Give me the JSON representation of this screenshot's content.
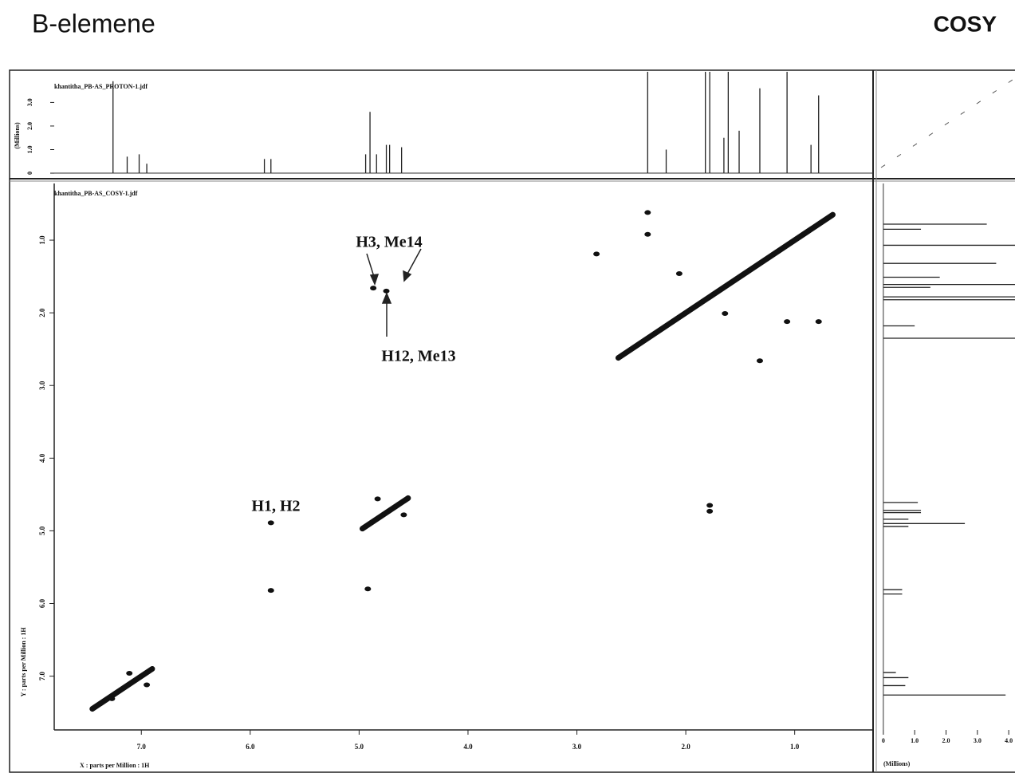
{
  "chart_data": {
    "type": "cosy",
    "title": "B-elemene",
    "subtitle": "COSY",
    "proton_file": "khantitha_PB-AS_PROTON-1.jdf",
    "cosy_file": "khantitha_PB-AS_COSY-1.jdf",
    "x_label": "X : parts per Million : 1H",
    "y_label": "Y : parts per Million : 1H",
    "intensity_label": "(Millions)",
    "xlim": [
      7.8,
      0.28
    ],
    "ylim": [
      0.22,
      7.74
    ],
    "xticks": [
      {
        "value": 7,
        "label": "7.0"
      },
      {
        "value": 6,
        "label": "6.0"
      },
      {
        "value": 5,
        "label": "5.0"
      },
      {
        "value": 4,
        "label": "4.0"
      },
      {
        "value": 3,
        "label": "3.0"
      },
      {
        "value": 2,
        "label": "2.0"
      },
      {
        "value": 1,
        "label": "1.0"
      }
    ],
    "yticks": [
      {
        "value": 1,
        "label": "1.0"
      },
      {
        "value": 2,
        "label": "2.0"
      },
      {
        "value": 3,
        "label": "3.0"
      },
      {
        "value": 4,
        "label": "4.0"
      },
      {
        "value": 5,
        "label": "5.0"
      },
      {
        "value": 6,
        "label": "6.0"
      },
      {
        "value": 7,
        "label": "7.0"
      }
    ],
    "proton": {
      "x": [
        7.26,
        7.13,
        7.02,
        6.95,
        5.87,
        5.81,
        4.94,
        4.9,
        4.84,
        4.75,
        4.72,
        4.61,
        2.35,
        2.18,
        1.82,
        1.78,
        1.65,
        1.61,
        1.51,
        1.32,
        1.07,
        0.85,
        0.78
      ],
      "values": [
        3.9,
        0.7,
        0.8,
        0.4,
        0.6,
        0.6,
        0.8,
        2.6,
        0.8,
        1.2,
        1.2,
        1.1,
        4.3,
        1.0,
        4.3,
        4.3,
        1.5,
        4.3,
        1.8,
        3.6,
        4.3,
        1.2,
        3.3
      ],
      "ylim": [
        -0.1,
        4.3
      ],
      "yticks": [
        0,
        {
          "value": 1,
          "label": "1.0"
        },
        {
          "value": 2,
          "label": "2.0"
        },
        {
          "value": 3,
          "label": "3.0"
        }
      ],
      "side_lim": [
        -0.2,
        4.2
      ],
      "side_ticks": [
        0,
        {
          "value": 1,
          "label": "1.0"
        },
        {
          "value": 2,
          "label": "2.0"
        },
        {
          "value": 3,
          "label": "3.0"
        },
        {
          "value": 4,
          "label": "4.0"
        }
      ]
    },
    "diagonal": {
      "x": [
        7.45,
        6.9,
        null,
        4.97,
        4.55,
        null,
        2.62,
        0.65
      ],
      "y": [
        7.45,
        6.9,
        null,
        4.97,
        4.55,
        null,
        2.62,
        0.65
      ]
    },
    "peaks": {
      "x": [
        2.35,
        2.35,
        2.82,
        2.06,
        4.87,
        4.75,
        1.07,
        0.78,
        1.32,
        1.64,
        1.78,
        1.78,
        5.81,
        5.81,
        4.92,
        4.83,
        4.59,
        7.11,
        6.95,
        7.27
      ],
      "y": [
        0.62,
        0.92,
        1.19,
        1.46,
        1.66,
        1.7,
        2.12,
        2.12,
        2.66,
        2.01,
        4.65,
        4.73,
        4.89,
        5.82,
        5.8,
        4.56,
        4.78,
        6.96,
        7.12,
        7.31
      ]
    },
    "annotations": [
      "H3, Me14",
      "H12, Me13",
      "H1, H2"
    ]
  }
}
